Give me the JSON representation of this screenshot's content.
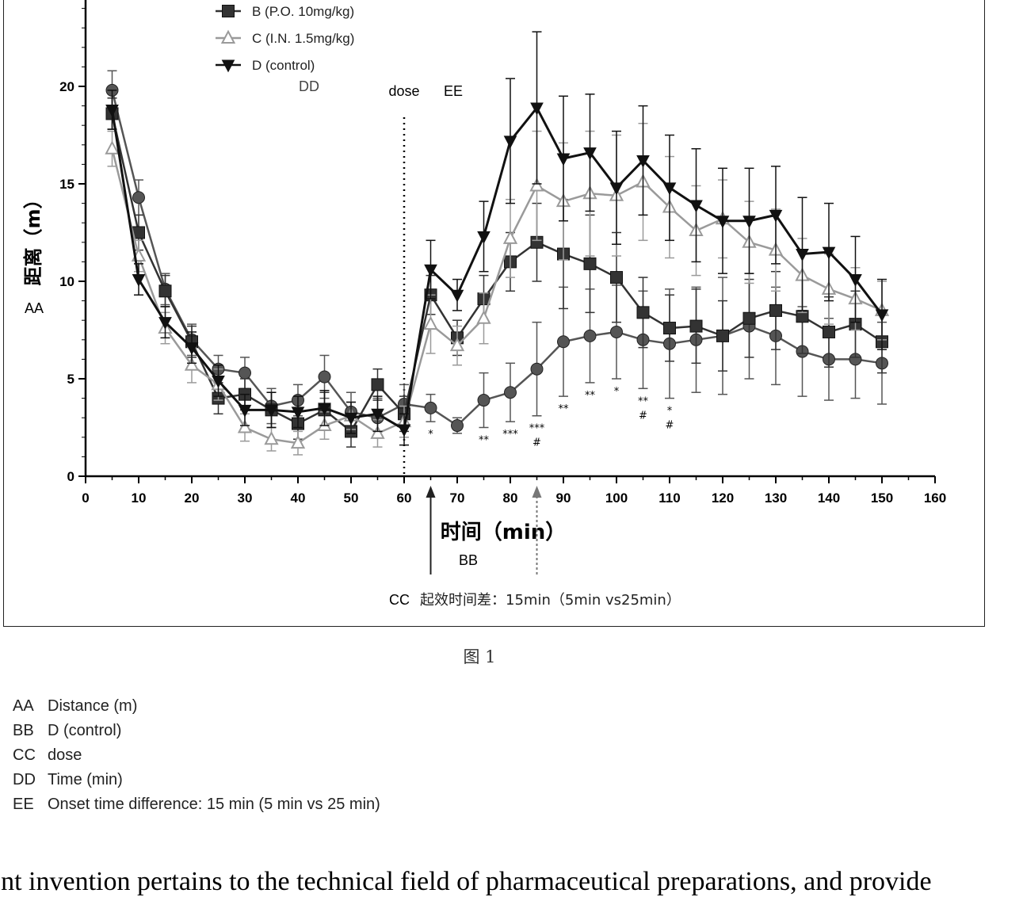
{
  "chart_data": {
    "type": "line",
    "xlabel": "时间（min）",
    "ylabel": "距离（m）",
    "xlim": [
      0,
      160
    ],
    "ylim": [
      0,
      20
    ],
    "x_ticks": [
      "0",
      "10",
      "20",
      "30",
      "40",
      "50",
      "60",
      "70",
      "80",
      "90",
      "100",
      "110",
      "120",
      "130",
      "140",
      "150",
      "160"
    ],
    "y_ticks": [
      "0",
      "5",
      "10",
      "15",
      "20"
    ],
    "grid": false,
    "legend_position": "top-left",
    "series": [
      {
        "name": "",
        "marker": "circle",
        "color": "#555555",
        "x": [
          5,
          10,
          15,
          20,
          25,
          30,
          35,
          40,
          45,
          50,
          55,
          60,
          65,
          70,
          75,
          80,
          85,
          90,
          95,
          100,
          105,
          110,
          115,
          120,
          125,
          130,
          135,
          140,
          145,
          150
        ],
        "y": [
          19.8,
          14.3,
          9.6,
          7.0,
          5.5,
          5.3,
          3.6,
          3.9,
          5.1,
          3.3,
          3.0,
          3.7,
          3.5,
          2.6,
          3.9,
          4.3,
          5.5,
          6.9,
          7.2,
          7.4,
          7.0,
          6.8,
          7.0,
          7.2,
          7.7,
          7.2,
          6.4,
          6.0,
          6.0,
          5.8
        ],
        "err": [
          1.0,
          0.9,
          0.8,
          0.8,
          0.7,
          0.8,
          0.9,
          0.8,
          1.1,
          1.0,
          1.0,
          1.0,
          0.7,
          0.4,
          1.4,
          1.5,
          2.4,
          2.8,
          2.4,
          2.4,
          2.5,
          2.8,
          2.7,
          3.0,
          2.7,
          2.5,
          2.3,
          2.1,
          2.0,
          2.1
        ]
      },
      {
        "name": "B (P.O. 10mg/kg)",
        "marker": "square",
        "color": "#333333",
        "x": [
          5,
          10,
          15,
          20,
          25,
          30,
          35,
          40,
          45,
          50,
          55,
          60,
          65,
          70,
          75,
          80,
          85,
          90,
          95,
          100,
          105,
          110,
          115,
          120,
          125,
          130,
          135,
          140,
          145,
          150
        ],
        "y": [
          18.6,
          12.5,
          9.5,
          6.9,
          4.0,
          4.2,
          3.4,
          2.7,
          3.4,
          2.3,
          4.7,
          3.2,
          9.3,
          7.1,
          9.1,
          11.0,
          12.0,
          11.4,
          10.9,
          10.2,
          8.4,
          7.6,
          7.7,
          7.2,
          8.1,
          8.5,
          8.2,
          7.4,
          7.8,
          6.9
        ],
        "err": [
          0.8,
          0.9,
          0.8,
          0.8,
          0.8,
          0.8,
          0.9,
          0.8,
          0.9,
          0.8,
          0.8,
          0.9,
          1.0,
          0.9,
          1.2,
          1.5,
          2.0,
          2.8,
          2.5,
          2.3,
          1.8,
          1.7,
          1.9,
          1.8,
          2.0,
          2.0,
          1.9,
          1.8,
          1.7,
          1.6
        ]
      },
      {
        "name": "C (I.N. 1.5mg/kg)",
        "marker": "triangle-up",
        "color": "#9a9a9a",
        "x": [
          5,
          10,
          15,
          20,
          25,
          30,
          35,
          40,
          45,
          50,
          55,
          60,
          65,
          70,
          75,
          80,
          85,
          90,
          95,
          100,
          105,
          110,
          115,
          120,
          125,
          130,
          135,
          140,
          145,
          150
        ],
        "y": [
          16.8,
          11.3,
          7.6,
          5.7,
          4.7,
          2.5,
          1.9,
          1.7,
          2.6,
          3.1,
          2.2,
          2.8,
          7.8,
          6.7,
          8.1,
          12.2,
          14.9,
          14.1,
          14.5,
          14.4,
          15.1,
          13.8,
          12.6,
          13.2,
          12.0,
          11.6,
          10.3,
          9.6,
          9.1,
          8.5
        ],
        "err": [
          0.9,
          0.8,
          0.8,
          0.9,
          0.8,
          0.7,
          0.6,
          0.6,
          0.7,
          0.7,
          0.7,
          0.8,
          1.5,
          1.0,
          1.3,
          2.0,
          2.8,
          3.0,
          3.2,
          3.1,
          3.0,
          2.6,
          2.3,
          2.0,
          2.1,
          2.1,
          1.9,
          1.8,
          1.6,
          1.5
        ]
      },
      {
        "name": "D (control)",
        "marker": "triangle-down",
        "color": "#111111",
        "x": [
          5,
          10,
          15,
          20,
          25,
          30,
          35,
          40,
          45,
          50,
          55,
          60,
          65,
          70,
          75,
          80,
          85,
          90,
          95,
          100,
          105,
          110,
          115,
          120,
          125,
          130,
          135,
          140,
          145,
          150
        ],
        "y": [
          18.8,
          10.1,
          7.9,
          6.6,
          4.9,
          3.4,
          3.4,
          3.3,
          3.5,
          3.0,
          3.2,
          2.4,
          10.6,
          9.3,
          12.3,
          17.2,
          18.9,
          16.3,
          16.6,
          14.8,
          16.2,
          14.8,
          13.9,
          13.1,
          13.1,
          13.4,
          11.4,
          11.5,
          10.1,
          8.3
        ],
        "err": [
          1.0,
          0.8,
          0.8,
          0.8,
          0.8,
          0.8,
          0.9,
          0.8,
          0.9,
          0.8,
          0.9,
          0.8,
          1.5,
          0.8,
          1.8,
          3.2,
          3.9,
          3.2,
          3.0,
          2.9,
          2.8,
          2.7,
          2.9,
          2.7,
          2.7,
          2.5,
          2.9,
          2.5,
          2.2,
          1.8
        ]
      }
    ],
    "significance_marks": [
      {
        "x": 65,
        "label": "*"
      },
      {
        "x": 75,
        "label": "**"
      },
      {
        "x": 80,
        "label": "***"
      },
      {
        "x": 85,
        "label": "***",
        "label2": "#"
      },
      {
        "x": 90,
        "label": "**"
      },
      {
        "x": 95,
        "label": "**"
      },
      {
        "x": 100,
        "label": "*"
      },
      {
        "x": 105,
        "label": "**",
        "label2": "#"
      },
      {
        "x": 110,
        "label": "*",
        "label2": "#"
      }
    ],
    "annotations": {
      "dose_line_x": 60,
      "dose_label": "dose",
      "ee_label": "EE",
      "dd_label": "DD",
      "aa_label": "AA",
      "bb_label": "BB",
      "cc_label": "CC",
      "cc_text": "起效时间差：15min（5min vs25min）",
      "arrow_x": [
        65,
        85
      ]
    }
  },
  "caption": "图 1",
  "key_list": [
    {
      "code": "AA",
      "text": "Distance (m)"
    },
    {
      "code": "BB",
      "text": "D (control)"
    },
    {
      "code": "CC",
      "text": "dose"
    },
    {
      "code": "DD",
      "text": "Time (min)"
    },
    {
      "code": "EE",
      "text": "Onset time difference: 15 min (5 min vs 25 min)"
    }
  ],
  "body_text": "ent invention pertains to the technical field of pharmaceutical preparations, and provide"
}
